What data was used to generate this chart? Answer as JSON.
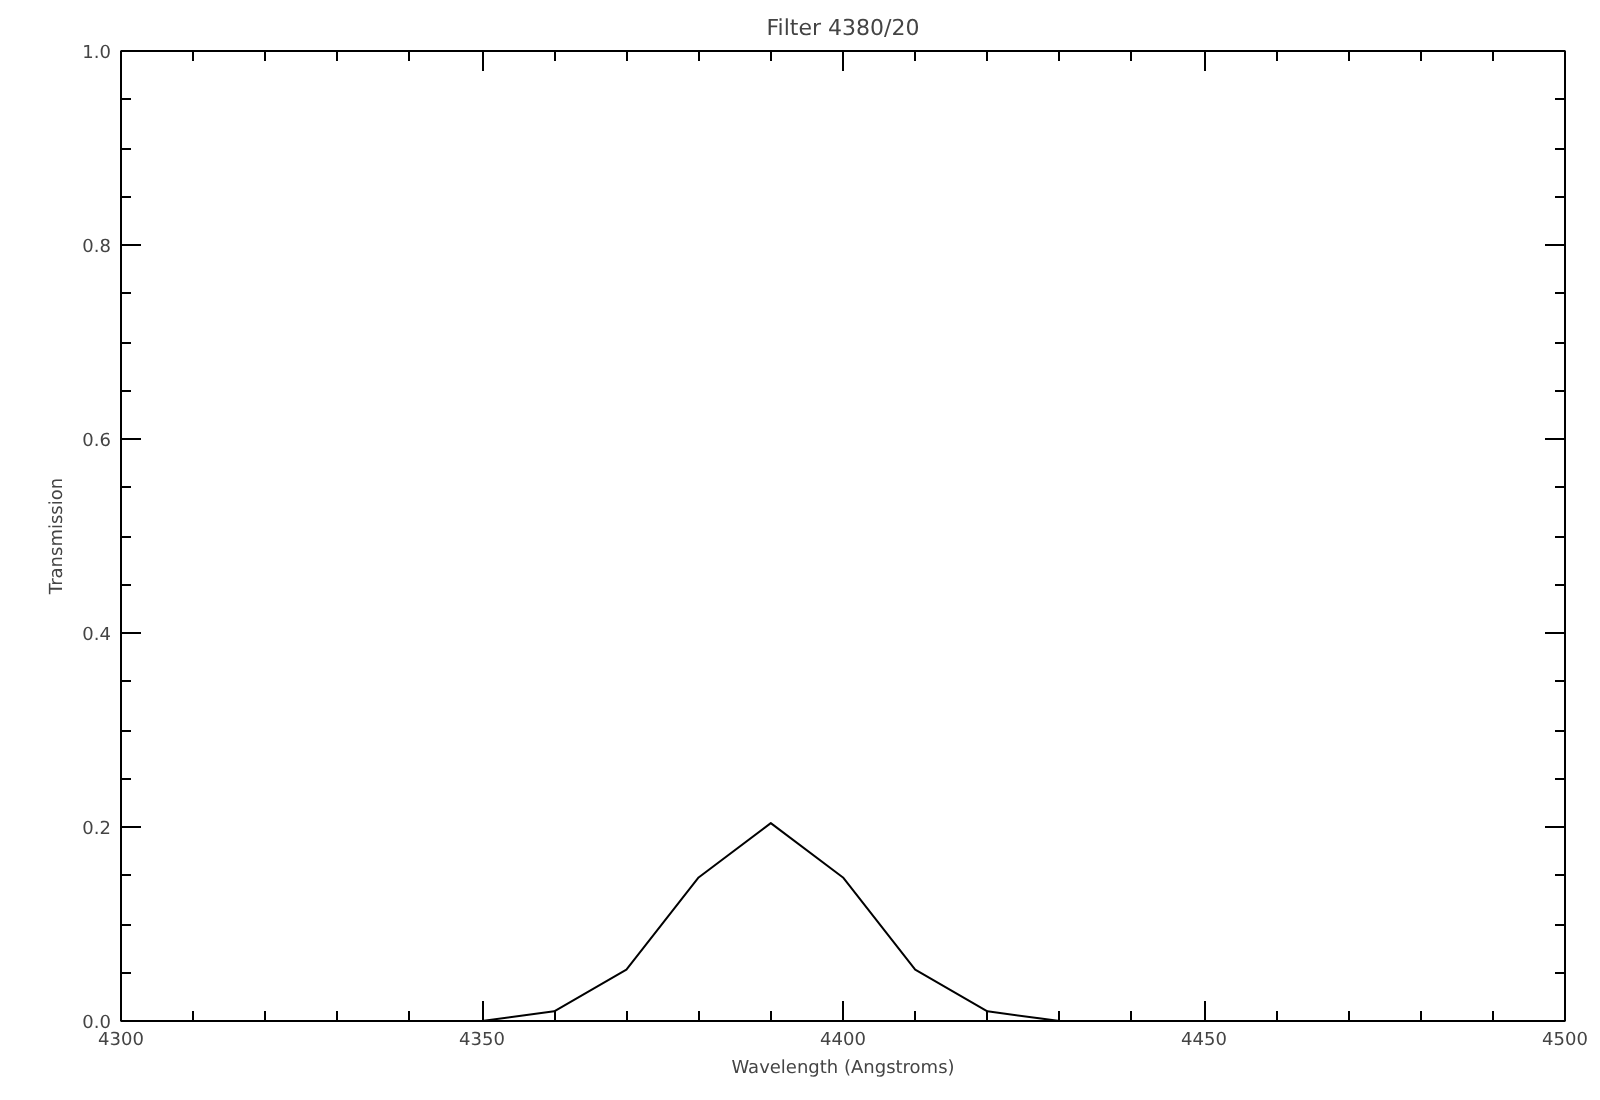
{
  "chart_data": {
    "type": "line",
    "title": "Filter 4380/20",
    "xlabel": "Wavelength (Angstroms)",
    "ylabel": "Transmission",
    "x": [
      4350,
      4360,
      4370,
      4380,
      4390,
      4400,
      4410,
      4420,
      4430
    ],
    "series": [
      {
        "color": "#000000",
        "values": [
          0.0,
          0.01,
          0.053,
          0.148,
          0.204,
          0.148,
          0.053,
          0.01,
          0.0
        ]
      }
    ],
    "xlim": [
      4300,
      4500
    ],
    "xticks": [
      4300,
      4350,
      4400,
      4450,
      4500
    ],
    "ylim": [
      0,
      1
    ],
    "yticks": [
      {
        "value": 0,
        "label": "0.0"
      },
      {
        "value": 0.2,
        "label": "0.2"
      },
      {
        "value": 0.4,
        "label": "0.4"
      },
      {
        "value": 0.6,
        "label": "0.6"
      },
      {
        "value": 0.8,
        "label": "0.8"
      },
      {
        "value": 1,
        "label": "1.0"
      }
    ],
    "grid": false,
    "marker": "none",
    "line_style": "solid"
  }
}
